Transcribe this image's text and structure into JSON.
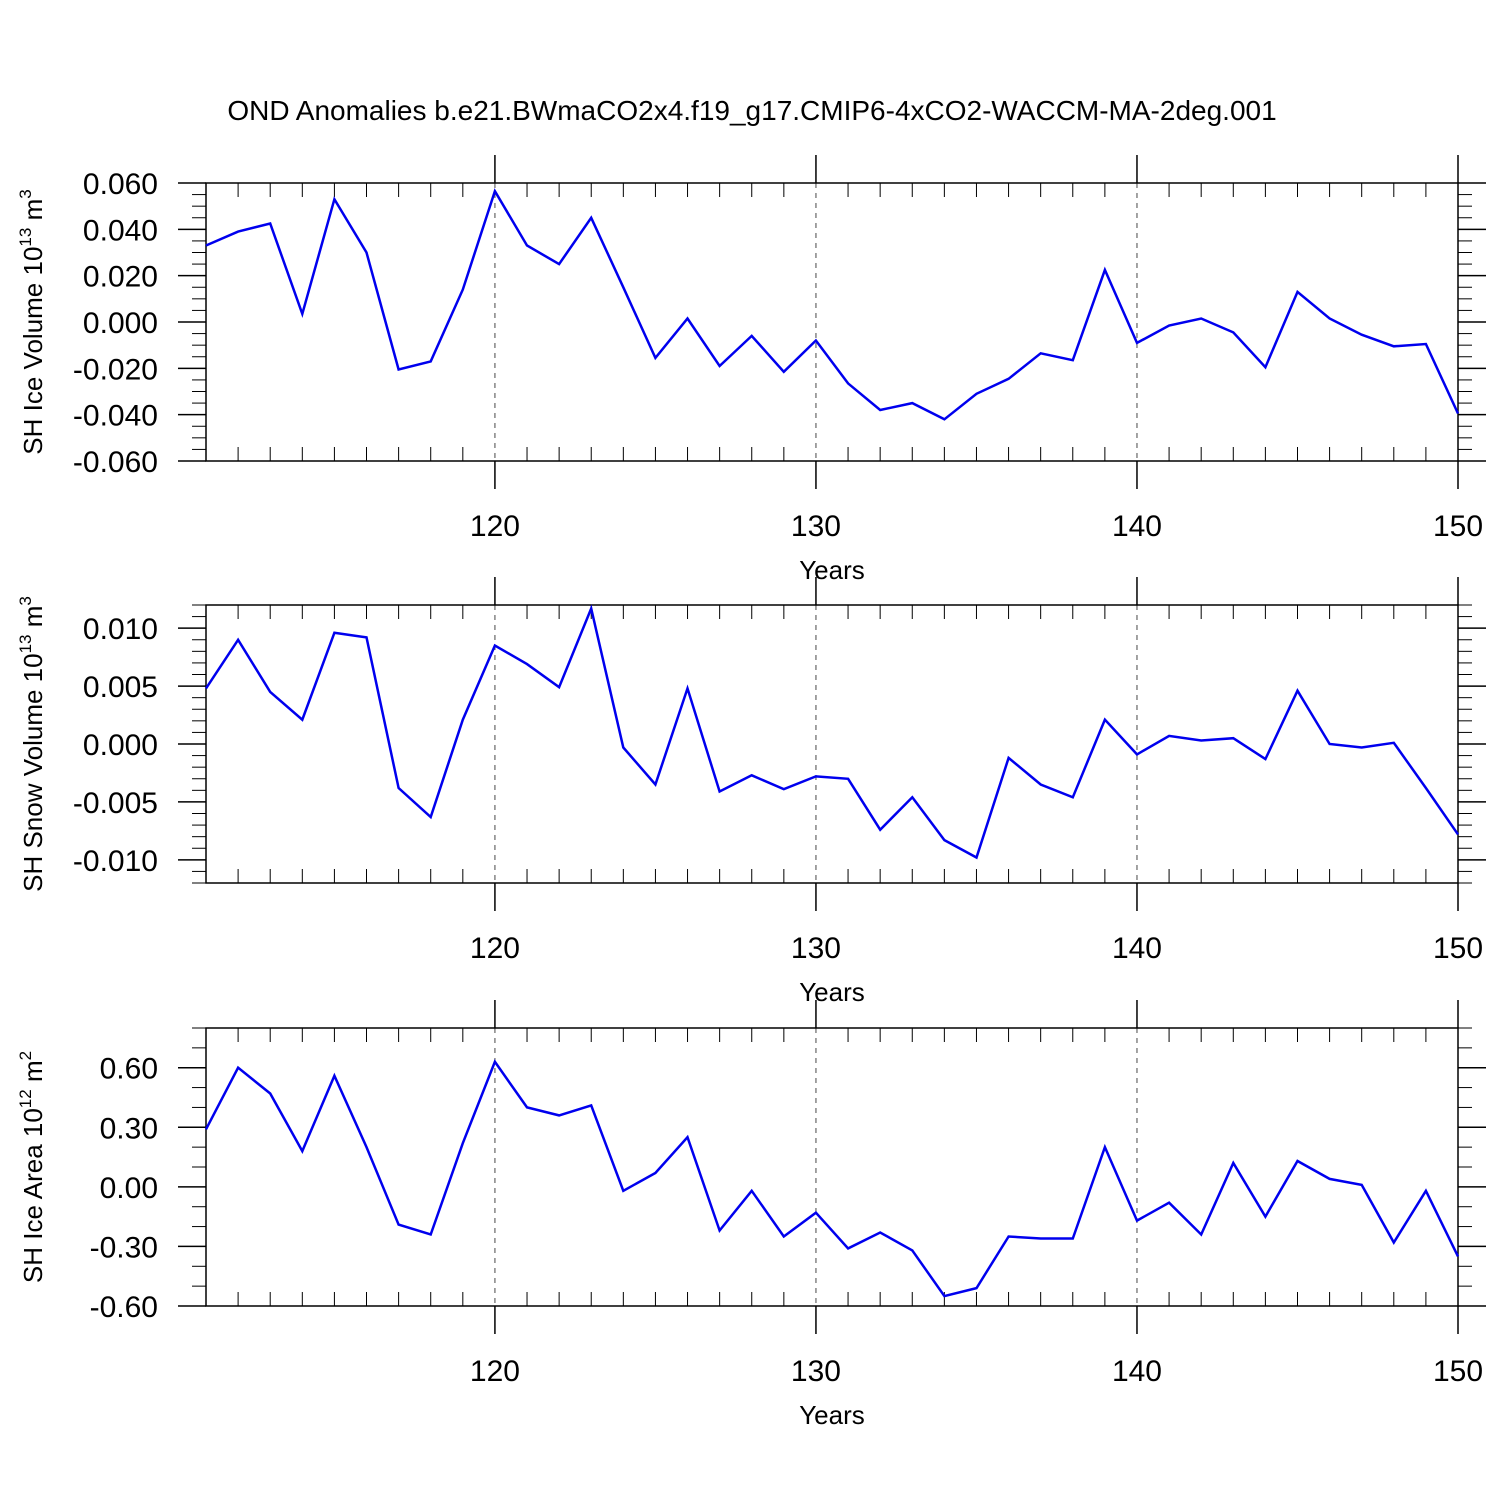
{
  "colors": {
    "line": "#0000ee",
    "axis": "#000000",
    "grid": "#666666",
    "background": "#ffffff"
  },
  "chart_data": {
    "type": "line",
    "title": "OND Anomalies b.e21.BWmaCO2x4.f19_g17.CMIP6-4xCO2-WACCM-MA-2deg.001",
    "x": [
      111,
      112,
      113,
      114,
      115,
      116,
      117,
      118,
      119,
      120,
      121,
      122,
      123,
      124,
      125,
      126,
      127,
      128,
      129,
      130,
      131,
      132,
      133,
      134,
      135,
      136,
      137,
      138,
      139,
      140,
      141,
      142,
      143,
      144,
      145,
      146,
      147,
      148,
      149,
      150
    ],
    "xlim": [
      111,
      150
    ],
    "xticks": [
      120,
      130,
      140,
      150
    ],
    "xtick_labels": [
      "120",
      "130",
      "140",
      "150"
    ],
    "xminor_step": 1,
    "xgrid_dashed": [
      120,
      130,
      140
    ],
    "panels": [
      {
        "ylabel_main": "SH Ice Volume 10",
        "ylabel_exp": "13",
        "ylabel_unit": " m",
        "ylabel_unit_exp": "3",
        "xlabel": "Years",
        "ylim": [
          -0.06,
          0.06
        ],
        "yticks": [
          -0.06,
          -0.04,
          -0.02,
          0.0,
          0.02,
          0.04,
          0.06
        ],
        "ytick_labels": [
          "-0.060",
          "-0.040",
          "-0.020",
          "0.000",
          "0.020",
          "0.040",
          "0.060"
        ],
        "yminor_step": 0.005,
        "values": [
          0.033,
          0.039,
          0.0425,
          0.0035,
          0.053,
          0.03,
          -0.0205,
          -0.017,
          0.014,
          0.0565,
          0.033,
          0.025,
          0.045,
          0.015,
          -0.0155,
          0.0015,
          -0.019,
          -0.006,
          -0.0215,
          -0.008,
          -0.0265,
          -0.038,
          -0.035,
          -0.042,
          -0.031,
          -0.0245,
          -0.0135,
          -0.0165,
          0.0225,
          -0.009,
          -0.0015,
          0.0015,
          -0.0045,
          -0.0195,
          0.013,
          0.0015,
          -0.0055,
          -0.0105,
          -0.0095,
          -0.0395
        ]
      },
      {
        "ylabel_main": "SH Snow Volume 10",
        "ylabel_exp": "13",
        "ylabel_unit": " m",
        "ylabel_unit_exp": "3",
        "xlabel": "Years",
        "ylim": [
          -0.012,
          0.012
        ],
        "yticks": [
          -0.01,
          -0.005,
          0.0,
          0.005,
          0.01
        ],
        "ytick_labels": [
          "-0.010",
          "-0.005",
          "0.000",
          "0.005",
          "0.010"
        ],
        "yminor_step": 0.001,
        "values": [
          0.0048,
          0.009,
          0.0045,
          0.0021,
          0.0096,
          0.0092,
          -0.0038,
          -0.0063,
          0.0021,
          0.0085,
          0.0069,
          0.0049,
          0.0117,
          -0.0003,
          -0.0035,
          0.0048,
          -0.0041,
          -0.0027,
          -0.0039,
          -0.0028,
          -0.003,
          -0.0074,
          -0.0046,
          -0.0083,
          -0.0098,
          -0.0012,
          -0.0035,
          -0.0046,
          0.0021,
          -0.0009,
          0.0007,
          0.0003,
          0.0005,
          -0.0013,
          0.0046,
          0.0,
          -0.0003,
          0.0001,
          -0.0038,
          -0.0078
        ]
      },
      {
        "ylabel_main": "SH Ice Area 10",
        "ylabel_exp": "12",
        "ylabel_unit": " m",
        "ylabel_unit_exp": "2",
        "xlabel": "Years",
        "ylim": [
          -0.6,
          0.8
        ],
        "yticks": [
          -0.6,
          -0.3,
          0.0,
          0.3,
          0.6
        ],
        "ytick_labels": [
          "-0.60",
          "-0.30",
          "0.00",
          "0.30",
          "0.60"
        ],
        "yminor_step": 0.1,
        "values": [
          0.29,
          0.6,
          0.47,
          0.18,
          0.56,
          0.2,
          -0.19,
          -0.24,
          0.22,
          0.63,
          0.4,
          0.36,
          0.41,
          -0.02,
          0.07,
          0.25,
          -0.22,
          -0.02,
          -0.25,
          -0.13,
          -0.31,
          -0.23,
          -0.32,
          -0.55,
          -0.51,
          -0.25,
          -0.26,
          -0.26,
          0.2,
          -0.17,
          -0.08,
          -0.24,
          0.12,
          -0.15,
          0.13,
          0.04,
          0.01,
          -0.28,
          -0.02,
          -0.35
        ]
      }
    ]
  }
}
